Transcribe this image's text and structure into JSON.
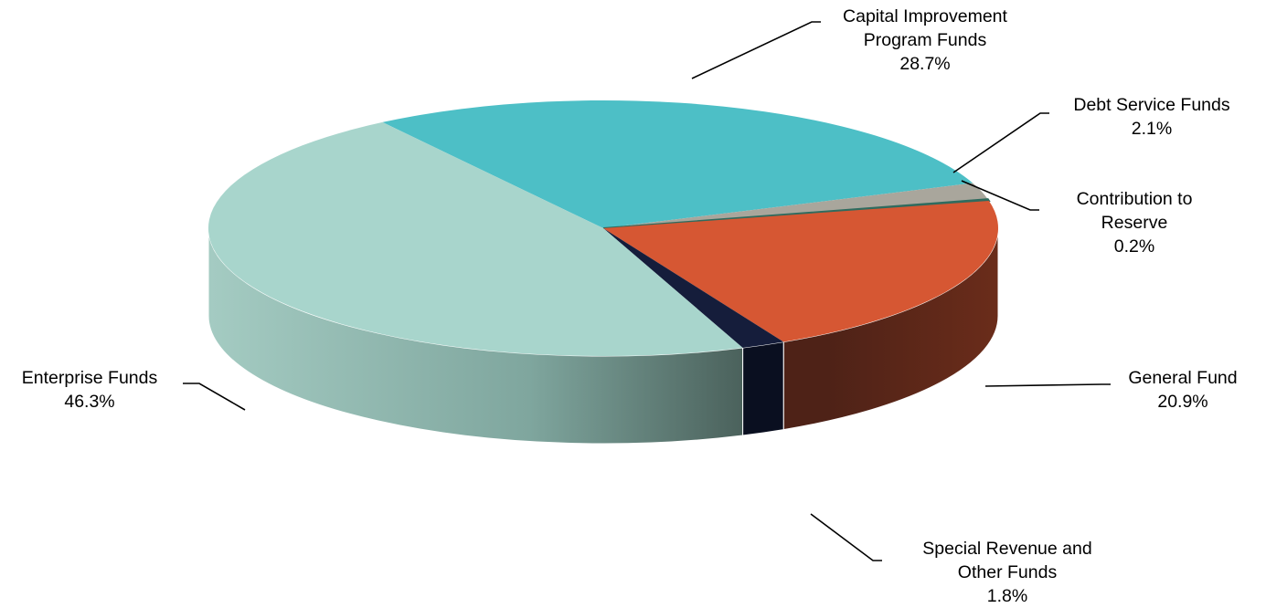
{
  "chart_data": {
    "type": "pie",
    "style": "3d",
    "title": "",
    "slices": [
      {
        "name": "Capital Improvement Program Funds",
        "label_lines": [
          "Capital Improvement",
          "Program Funds"
        ],
        "pct": "28.7%",
        "value": 28.7,
        "color": "#4dbfc6"
      },
      {
        "name": "Debt Service Funds",
        "label_lines": [
          "Debt Service Funds"
        ],
        "pct": "2.1%",
        "value": 2.1,
        "color": "#a9a69c"
      },
      {
        "name": "Contribution to Reserve",
        "label_lines": [
          "Contribution to",
          "Reserve"
        ],
        "pct": "0.2%",
        "value": 0.2,
        "color": "#2f6b5e"
      },
      {
        "name": "General Fund",
        "label_lines": [
          "General Fund"
        ],
        "pct": "20.9%",
        "value": 20.9,
        "color": "#d65733"
      },
      {
        "name": "Special Revenue and Other Funds",
        "label_lines": [
          "Special Revenue and",
          "Other Funds"
        ],
        "pct": "1.8%",
        "value": 1.8,
        "color": "#151d3b"
      },
      {
        "name": "Enterprise Funds",
        "label_lines": [
          "Enterprise Funds"
        ],
        "pct": "46.3%",
        "value": 46.3,
        "color": "#a8d5cc"
      }
    ]
  }
}
